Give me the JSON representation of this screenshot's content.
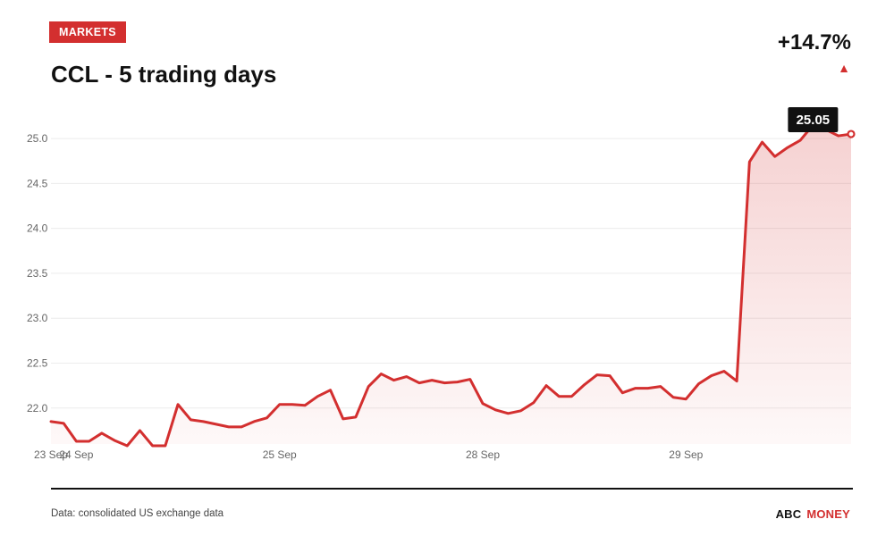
{
  "header": {
    "badge": "MARKETS",
    "title": "CCL - 5 trading days",
    "change": "+14.7%",
    "change_direction": "up",
    "accent_color": "#d32f2f"
  },
  "footer": {
    "source": "Data: consolidated US exchange data",
    "brand_part1": "ABC",
    "brand_part2": "MONEY"
  },
  "chart_data": {
    "type": "area",
    "title": "CCL - 5 trading days",
    "ylim": [
      21.6,
      25.15
    ],
    "yticks": [
      22.0,
      22.5,
      23.0,
      23.5,
      24.0,
      24.5,
      25.0
    ],
    "ytick_labels": [
      "22.0",
      "22.5",
      "23.0",
      "23.5",
      "24.0",
      "24.5",
      "25.0"
    ],
    "xticks": [
      {
        "label": "23 Sep",
        "index": 0
      },
      {
        "label": "24 Sep",
        "index": 2
      },
      {
        "label": "25 Sep",
        "index": 18
      },
      {
        "label": "28 Sep",
        "index": 34
      },
      {
        "label": "29 Sep",
        "index": 50
      }
    ],
    "grid": true,
    "line_color": "#d32f2f",
    "last_value_label": "25.05",
    "series": [
      {
        "values": [
          21.85,
          21.83,
          21.63,
          21.63,
          21.72,
          21.64,
          21.58,
          21.75,
          21.58,
          21.58,
          22.04,
          21.87,
          21.85,
          21.82,
          21.79,
          21.79,
          21.85,
          21.89,
          22.04,
          22.04,
          22.03,
          22.13,
          22.2,
          21.88,
          21.9,
          22.24,
          22.38,
          22.31,
          22.35,
          22.28,
          22.31,
          22.28,
          22.29,
          22.32,
          22.05,
          21.98,
          21.94,
          21.97,
          22.06,
          22.25,
          22.13,
          22.13,
          22.26,
          22.37,
          22.36,
          22.17,
          22.22,
          22.22,
          22.24,
          22.12,
          22.1,
          22.27,
          22.36,
          22.41,
          22.3,
          24.74,
          24.96,
          24.8,
          24.9,
          24.98,
          25.15,
          25.1,
          25.03,
          25.05
        ]
      }
    ]
  }
}
